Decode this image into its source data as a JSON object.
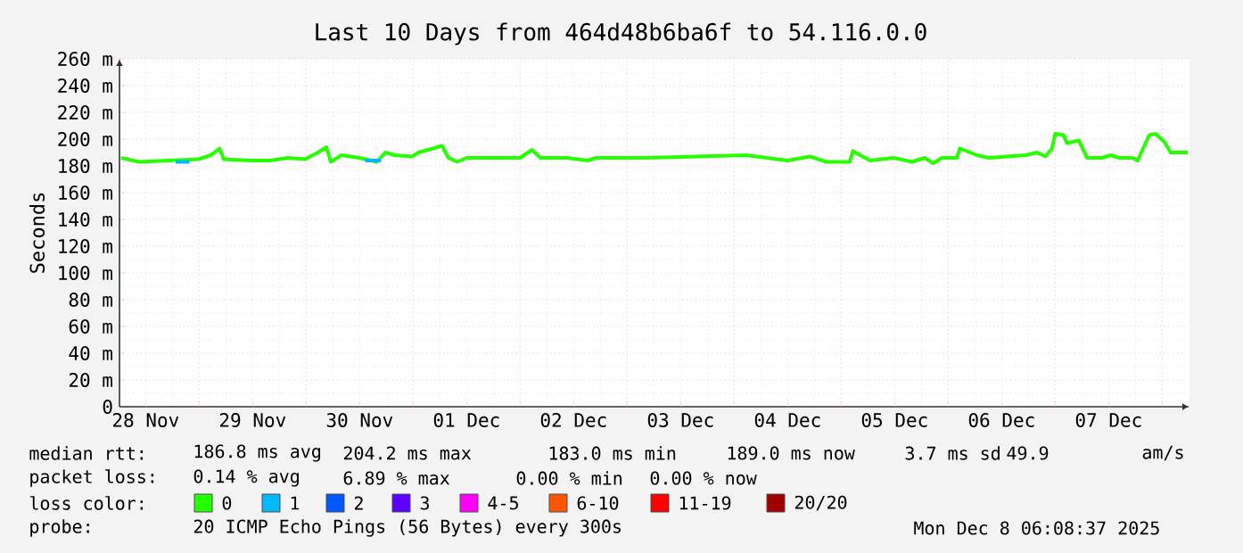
{
  "chart_data": {
    "type": "line",
    "title": "Last 10 Days from 464d48b6ba6f to 54.116.0.0",
    "ylabel": "Seconds",
    "xlim": [
      "2025-11-28T06:08",
      "2025-12-08T06:08"
    ],
    "ylim": [
      0,
      260
    ],
    "xticks": [
      {
        "value": "2025-11-28T12:00",
        "label": "28 Nov"
      },
      {
        "value": "2025-11-29",
        "label": null
      },
      {
        "value": "2025-11-29T12:00",
        "label": "29 Nov"
      },
      {
        "value": "2025-11-30",
        "label": null
      },
      {
        "value": "2025-11-30T12:00",
        "label": "30 Nov"
      },
      {
        "value": "2025-12-01",
        "label": null
      },
      {
        "value": "2025-12-01T12:00",
        "label": "01 Dec"
      },
      {
        "value": "2025-12-02",
        "label": null
      },
      {
        "value": "2025-12-02T12:00",
        "label": "02 Dec"
      },
      {
        "value": "2025-12-03",
        "label": null
      },
      {
        "value": "2025-12-03T12:00",
        "label": "03 Dec"
      },
      {
        "value": "2025-12-04",
        "label": null
      },
      {
        "value": "2025-12-04T12:00",
        "label": "04 Dec"
      },
      {
        "value": "2025-12-05",
        "label": null
      },
      {
        "value": "2025-12-05T12:00",
        "label": "05 Dec"
      },
      {
        "value": "2025-12-06",
        "label": null
      },
      {
        "value": "2025-12-06T12:00",
        "label": "06 Dec"
      },
      {
        "value": "2025-12-07",
        "label": null
      },
      {
        "value": "2025-12-07T12:00",
        "label": "07 Dec"
      },
      {
        "value": "2025-12-08",
        "label": null
      }
    ],
    "yticks": [
      0,
      {
        "value": 20,
        "label": "20 m"
      },
      {
        "value": 40,
        "label": "40 m"
      },
      {
        "value": 60,
        "label": "60 m"
      },
      {
        "value": 80,
        "label": "80 m"
      },
      {
        "value": 100,
        "label": "100 m"
      },
      {
        "value": 120,
        "label": "120 m"
      },
      {
        "value": 140,
        "label": "140 m"
      },
      {
        "value": 160,
        "label": "160 m"
      },
      {
        "value": 180,
        "label": "180 m"
      },
      {
        "value": 200,
        "label": "200 m"
      },
      {
        "value": 220,
        "label": "220 m"
      },
      {
        "value": 240,
        "label": "240 m"
      },
      {
        "value": 260,
        "label": "260 m"
      }
    ],
    "grid": true,
    "legend": "bottom",
    "legend_title": "loss color:",
    "marker": "none",
    "line_style": "solid",
    "series": [
      {
        "name": "0",
        "color": "#26ff00",
        "x": [
          "2025-11-28T06:29",
          "2025-11-28T10:34",
          "2025-11-28T23:53",
          "2025-11-29T02:38",
          "2025-11-29T04:34",
          "2025-11-29T05:31",
          "2025-11-29T12:00",
          "2025-11-29T15:50",
          "2025-11-29T19:55",
          "2025-11-29T23:46",
          "2025-11-30T02:38",
          "2025-11-30T04:34",
          "2025-11-30T05:31",
          "2025-11-30T07:55",
          "2025-11-30T12:00",
          "2025-11-30T15:50",
          "2025-11-30T17:46",
          "2025-11-30T19:55",
          "2025-11-30T23:46",
          "2025-12-01T01:12",
          "2025-12-01T06:29",
          "2025-12-01T07:55",
          "2025-12-01T09:50",
          "2025-12-01T12:00",
          "2025-12-01T18:29",
          "2025-12-02T00:00",
          "2025-12-02T02:38",
          "2025-12-02T04:34",
          "2025-12-02T10:34",
          "2025-12-02T15:07",
          "2025-12-02T17:02",
          "2025-12-03T03:50",
          "2025-12-04T02:38",
          "2025-12-04T12:00",
          "2025-12-04T17:02",
          "2025-12-04T20:38",
          "2025-12-05T01:55",
          "2025-12-05T02:38",
          "2025-12-05T06:29",
          "2025-12-05T11:46",
          "2025-12-05T15:50",
          "2025-12-05T18:43",
          "2025-12-05T20:38",
          "2025-12-05T22:34",
          "2025-12-06T01:55",
          "2025-12-06T02:38",
          "2025-12-06T06:29",
          "2025-12-06T09:07",
          "2025-12-06T17:17",
          "2025-12-06T19:55",
          "2025-12-06T21:50",
          "2025-12-06T23:17",
          "2025-12-07T00:00",
          "2025-12-07T01:55",
          "2025-12-07T02:38",
          "2025-12-07T05:17",
          "2025-12-07T07:12",
          "2025-12-07T10:34",
          "2025-12-07T12:29",
          "2025-12-07T14:24",
          "2025-12-07T17:17",
          "2025-12-07T18:29",
          "2025-12-07T21:07",
          "2025-12-07T22:34",
          "2025-12-08T00:29",
          "2025-12-08T01:55",
          "2025-12-08T05:46"
        ],
        "values": [
          186,
          183,
          185,
          188,
          193,
          185,
          184,
          184,
          186,
          185,
          190,
          194,
          183,
          188,
          186,
          183,
          190,
          188,
          187,
          190,
          195,
          186,
          183,
          186,
          186,
          186,
          192,
          186,
          186,
          184,
          186,
          186,
          188,
          184,
          187,
          183,
          183,
          191,
          184,
          186,
          183,
          186,
          182,
          186,
          186,
          193,
          188,
          186,
          188,
          190,
          187,
          193,
          204,
          203,
          197,
          199,
          186,
          186,
          188,
          186,
          186,
          184,
          203,
          204,
          198,
          190,
          190
        ]
      },
      {
        "name": "1",
        "color": "#00b8ff",
        "x": [
          "2025-11-28T18:43",
          "2025-11-28T21:50",
          "2025-11-28T22:48",
          "2025-11-30T13:12",
          "2025-11-30T16:48"
        ],
        "values": [
          183,
          183,
          null,
          184,
          184
        ]
      },
      {
        "name": "2",
        "color": "#0059ff"
      },
      {
        "name": "3",
        "color": "#5e00ff"
      },
      {
        "name": "4-5",
        "color": "#ff00fe"
      },
      {
        "name": "6-10",
        "color": "#ff5500"
      },
      {
        "name": "11-19",
        "color": "#ff0000"
      },
      {
        "name": "20/20",
        "color": "#a10000"
      }
    ],
    "annotations": [
      "median rtt:",
      "186.8 ms avg",
      "204.2 ms max",
      "183.0 ms min",
      "189.0 ms now",
      "3.7 ms sd",
      "49.9",
      "am/s",
      "packet loss:",
      "0.14 % avg",
      "6.89 % max",
      "0.00 % min",
      "0.00 % now",
      "probe:",
      "20 ICMP Echo Pings (56 Bytes) every 300s",
      "Mon Dec 8 06:08:37 2025"
    ]
  }
}
